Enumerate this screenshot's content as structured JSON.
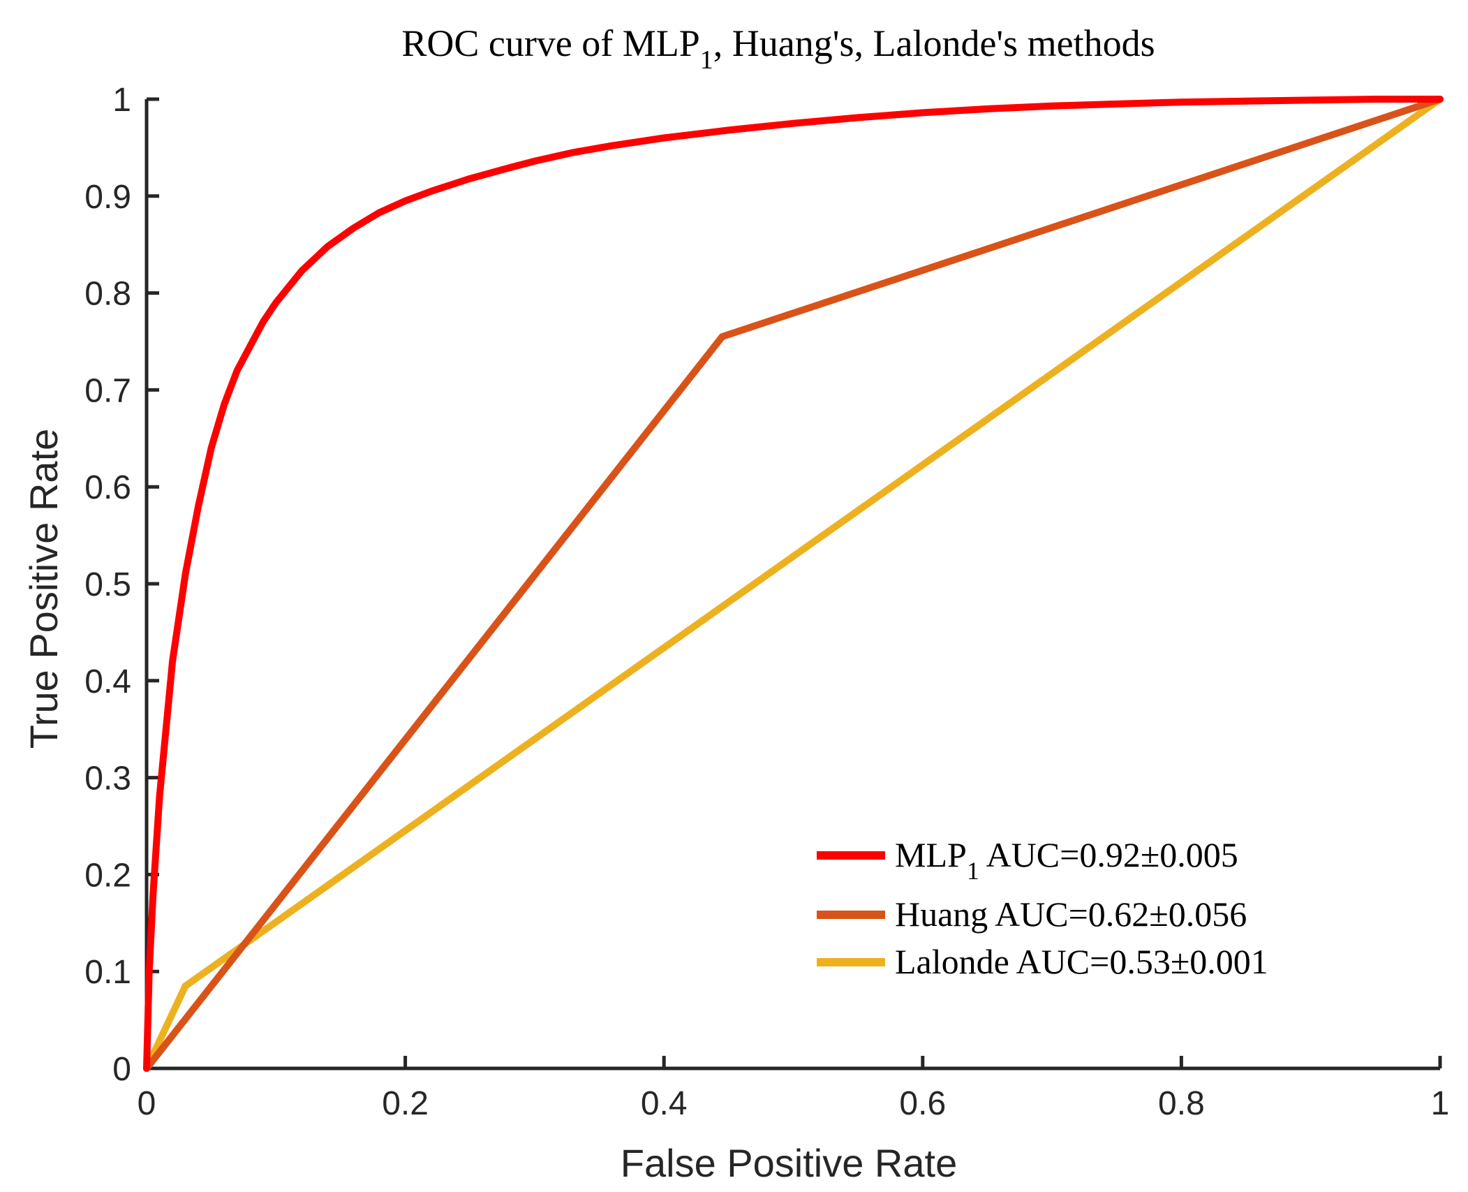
{
  "chart_data": {
    "type": "line",
    "title": {
      "prefix": "ROC curve of MLP",
      "subscript": "1",
      "suffix": ", Huang's, Lalonde's methods"
    },
    "xlabel": "False Positive Rate",
    "ylabel": "True Positive Rate",
    "xlim": [
      0,
      1
    ],
    "ylim": [
      0,
      1
    ],
    "xticks": [
      0,
      0.2,
      0.4,
      0.6,
      0.8,
      1
    ],
    "xtick_labels": [
      "0",
      "0.2",
      "0.4",
      "0.6",
      "0.8",
      "1"
    ],
    "yticks": [
      0,
      0.1,
      0.2,
      0.3,
      0.4,
      0.5,
      0.6,
      0.7,
      0.8,
      0.9,
      1
    ],
    "ytick_labels": [
      "0",
      "0.1",
      "0.2",
      "0.3",
      "0.4",
      "0.5",
      "0.6",
      "0.7",
      "0.8",
      "0.9",
      "1"
    ],
    "grid": false,
    "legend_position": "bottom-right",
    "series": [
      {
        "name": "MLP1",
        "legend": {
          "prefix": "MLP",
          "subscript": "1",
          "suffix": " AUC=0.92±0.005"
        },
        "color": "#ff0000",
        "x": [
          0,
          0.002,
          0.005,
          0.01,
          0.015,
          0.02,
          0.03,
          0.04,
          0.05,
          0.06,
          0.07,
          0.08,
          0.09,
          0.1,
          0.12,
          0.14,
          0.16,
          0.18,
          0.2,
          0.22,
          0.25,
          0.28,
          0.3,
          0.33,
          0.36,
          0.4,
          0.45,
          0.5,
          0.55,
          0.6,
          0.65,
          0.7,
          0.75,
          0.8,
          0.85,
          0.9,
          0.95,
          1
        ],
        "y": [
          0,
          0.1,
          0.18,
          0.28,
          0.35,
          0.42,
          0.51,
          0.58,
          0.64,
          0.685,
          0.72,
          0.745,
          0.77,
          0.79,
          0.823,
          0.848,
          0.867,
          0.883,
          0.895,
          0.905,
          0.918,
          0.929,
          0.936,
          0.945,
          0.952,
          0.96,
          0.968,
          0.975,
          0.981,
          0.986,
          0.99,
          0.993,
          0.995,
          0.997,
          0.998,
          0.999,
          1.0,
          1.0
        ]
      },
      {
        "name": "Huang",
        "legend": {
          "prefix": "Huang AUC=0.62±0.056",
          "subscript": "",
          "suffix": ""
        },
        "color": "#d95319",
        "x": [
          0,
          0.445,
          1
        ],
        "y": [
          0,
          0.755,
          1
        ]
      },
      {
        "name": "Lalonde",
        "legend": {
          "prefix": "Lalonde AUC=0.53±0.001",
          "subscript": "",
          "suffix": ""
        },
        "color": "#edb120",
        "x": [
          0,
          0.03,
          1
        ],
        "y": [
          0,
          0.085,
          1
        ]
      }
    ]
  }
}
